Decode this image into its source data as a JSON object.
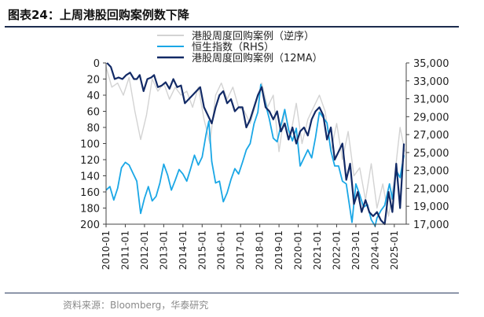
{
  "header": {
    "title": "图表24：上周港股回购案例数下降"
  },
  "footer": {
    "source": "资料来源：Bloomberg，华泰研究"
  },
  "colors": {
    "series_gray": "#d3d3d3",
    "series_cyan": "#1aa7e6",
    "series_navy": "#122a66",
    "rule": "#1c2c4e"
  },
  "chart_data": {
    "type": "line",
    "title": "",
    "xlabel": "",
    "ylabel": "",
    "x_ticks": [
      "2010-01",
      "2011-01",
      "2012-01",
      "2013-01",
      "2014-01",
      "2015-01",
      "2016-01",
      "2017-01",
      "2018-01",
      "2019-01",
      "2020-01",
      "2021-01",
      "2022-01",
      "2023-01",
      "2024-01",
      "2025-01"
    ],
    "y_left": {
      "ticks": [
        "0",
        "20",
        "40",
        "60",
        "80",
        "100",
        "120",
        "140",
        "160",
        "180",
        "200"
      ],
      "range": [
        0,
        200
      ],
      "inverted": true
    },
    "y_right": {
      "ticks": [
        "17,000",
        "19,000",
        "21,000",
        "23,000",
        "25,000",
        "27,000",
        "29,000",
        "31,000",
        "33,000",
        "35,000"
      ],
      "range": [
        17000,
        35000
      ]
    },
    "legend": {
      "placement": "top-center"
    },
    "series": [
      {
        "name": "港股周度回购案例（逆序）",
        "axis": "left",
        "color": "#d3d3d3",
        "x": [
          2010.0,
          2010.3,
          2010.6,
          2010.9,
          2011.2,
          2011.5,
          2011.8,
          2012.1,
          2012.4,
          2012.7,
          2013.0,
          2013.3,
          2013.6,
          2013.9,
          2014.2,
          2014.5,
          2014.8,
          2015.1,
          2015.4,
          2015.7,
          2016.0,
          2016.3,
          2016.6,
          2016.9,
          2017.2,
          2017.5,
          2017.8,
          2018.1,
          2018.4,
          2018.7,
          2019.0,
          2019.3,
          2019.6,
          2019.9,
          2020.2,
          2020.5,
          2020.8,
          2021.1,
          2021.4,
          2021.7,
          2022.0,
          2022.3,
          2022.6,
          2022.9,
          2023.2,
          2023.5,
          2023.8,
          2024.1,
          2024.4,
          2024.7,
          2025.0,
          2025.3,
          2025.55
        ],
        "y": [
          5,
          30,
          25,
          40,
          18,
          60,
          95,
          65,
          20,
          35,
          25,
          45,
          30,
          40,
          35,
          55,
          30,
          70,
          100,
          40,
          25,
          45,
          30,
          55,
          60,
          75,
          50,
          25,
          55,
          40,
          110,
          60,
          90,
          50,
          100,
          70,
          55,
          40,
          60,
          110,
          75,
          120,
          85,
          140,
          130,
          170,
          125,
          180,
          150,
          190,
          145,
          80,
          110
        ]
      },
      {
        "name": "恒生指数（RHS）",
        "axis": "right",
        "color": "#1aa7e6",
        "x": [
          2010.0,
          2010.2,
          2010.4,
          2010.6,
          2010.8,
          2011.0,
          2011.2,
          2011.4,
          2011.6,
          2011.8,
          2012.0,
          2012.2,
          2012.4,
          2012.6,
          2012.8,
          2013.0,
          2013.2,
          2013.4,
          2013.6,
          2013.8,
          2014.0,
          2014.2,
          2014.4,
          2014.6,
          2014.8,
          2015.0,
          2015.2,
          2015.35,
          2015.5,
          2015.7,
          2015.9,
          2016.1,
          2016.3,
          2016.5,
          2016.7,
          2016.9,
          2017.1,
          2017.3,
          2017.5,
          2017.7,
          2017.9,
          2018.05,
          2018.3,
          2018.5,
          2018.7,
          2018.9,
          2019.1,
          2019.3,
          2019.5,
          2019.7,
          2019.9,
          2020.1,
          2020.3,
          2020.5,
          2020.7,
          2020.9,
          2021.1,
          2021.3,
          2021.5,
          2021.7,
          2021.9,
          2022.1,
          2022.3,
          2022.5,
          2022.8,
          2023.0,
          2023.2,
          2023.4,
          2023.6,
          2023.8,
          2024.0,
          2024.1,
          2024.3,
          2024.5,
          2024.75,
          2024.9,
          2025.1,
          2025.3,
          2025.5
        ],
        "y": [
          20800,
          21200,
          19700,
          21000,
          23300,
          23900,
          23600,
          22700,
          21800,
          18200,
          19900,
          21200,
          19600,
          20100,
          21600,
          23700,
          22500,
          20800,
          21900,
          23100,
          22600,
          21800,
          23200,
          24700,
          23600,
          24500,
          27000,
          28500,
          24000,
          21600,
          21800,
          19500,
          20500,
          22000,
          23200,
          22600,
          23900,
          25300,
          26000,
          28200,
          29500,
          32600,
          30400,
          28700,
          26600,
          26200,
          28000,
          29800,
          27500,
          26300,
          27700,
          23500,
          24400,
          25300,
          24400,
          26700,
          29500,
          28900,
          28300,
          25200,
          23500,
          23500,
          21800,
          21500,
          17200,
          21500,
          20300,
          18900,
          19200,
          17500,
          16800,
          17700,
          18500,
          19100,
          21500,
          19800,
          23000,
          22200,
          24700
        ]
      },
      {
        "name": "港股周度回购案例（12MA）",
        "axis": "left",
        "color": "#122a66",
        "x": [
          2010.05,
          2010.25,
          2010.45,
          2010.65,
          2010.85,
          2011.05,
          2011.25,
          2011.45,
          2011.6,
          2011.75,
          2011.95,
          2012.15,
          2012.35,
          2012.5,
          2012.7,
          2012.9,
          2013.1,
          2013.3,
          2013.5,
          2013.7,
          2013.9,
          2014.1,
          2014.3,
          2014.5,
          2014.7,
          2014.9,
          2015.1,
          2015.3,
          2015.5,
          2015.7,
          2015.9,
          2016.1,
          2016.3,
          2016.5,
          2016.7,
          2016.9,
          2017.1,
          2017.3,
          2017.5,
          2017.7,
          2017.9,
          2018.1,
          2018.3,
          2018.5,
          2018.7,
          2018.9,
          2019.1,
          2019.3,
          2019.5,
          2019.7,
          2019.9,
          2020.1,
          2020.3,
          2020.5,
          2020.7,
          2020.9,
          2021.1,
          2021.3,
          2021.5,
          2021.7,
          2021.9,
          2022.1,
          2022.3,
          2022.5,
          2022.7,
          2022.9,
          2023.1,
          2023.3,
          2023.5,
          2023.7,
          2023.9,
          2024.1,
          2024.3,
          2024.5,
          2024.7,
          2024.9,
          2025.1,
          2025.3,
          2025.5
        ],
        "y": [
          0,
          5,
          20,
          18,
          20,
          15,
          12,
          20,
          20,
          15,
          35,
          20,
          18,
          15,
          30,
          28,
          24,
          32,
          20,
          30,
          28,
          50,
          45,
          40,
          35,
          30,
          55,
          65,
          75,
          55,
          40,
          35,
          50,
          45,
          60,
          55,
          55,
          80,
          70,
          55,
          40,
          30,
          55,
          60,
          70,
          60,
          85,
          75,
          95,
          80,
          100,
          85,
          80,
          90,
          70,
          60,
          55,
          65,
          95,
          80,
          120,
          110,
          100,
          145,
          125,
          175,
          160,
          185,
          170,
          185,
          190,
          185,
          195,
          200,
          160,
          185,
          125,
          180,
          100
        ]
      }
    ]
  }
}
